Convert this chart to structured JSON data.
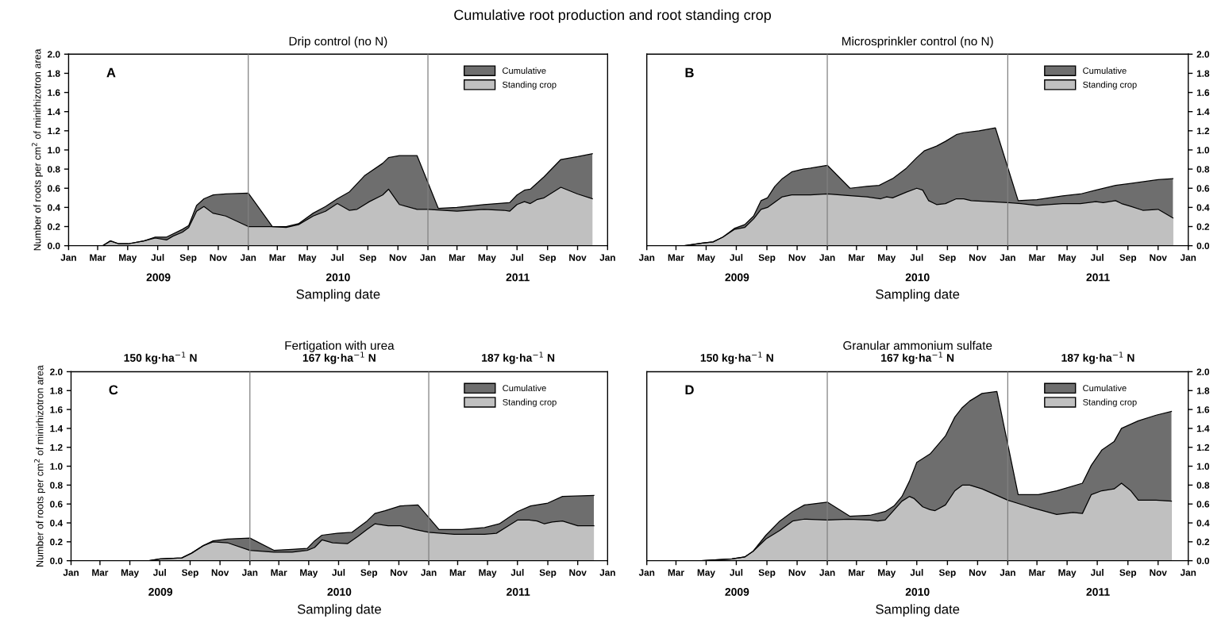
{
  "chart_data": [
    {
      "type": "area",
      "title": "Cumulative root production and root standing crop",
      "subtitle": "Drip control (no N)",
      "xlabel": "Sampling date",
      "ylabel": "Number of roots per cm$^{2}$ of minirhizotron area",
      "annotations": [
        "A",
        "2009",
        "2010",
        "2011"
      ],
      "xlim": [
        "2009-01-01",
        "2012-01-01"
      ],
      "xticks": [
        {
          "value": "2009-01-01",
          "label": "Jan"
        },
        {
          "value": "2009-03-01",
          "label": "Mar"
        },
        {
          "value": "2009-05-01",
          "label": "May"
        },
        {
          "value": "2009-07-01",
          "label": "Jul"
        },
        {
          "value": "2009-09-01",
          "label": "Sep"
        },
        {
          "value": "2009-11-01",
          "label": "Nov"
        },
        {
          "value": "2010-01-01",
          "label": "Jan"
        },
        {
          "value": "2010-03-01",
          "label": "Mar"
        },
        {
          "value": "2010-05-01",
          "label": "May"
        },
        {
          "value": "2010-07-01",
          "label": "Jul"
        },
        {
          "value": "2010-09-01",
          "label": "Sep"
        },
        {
          "value": "2010-11-01",
          "label": "Nov"
        },
        {
          "value": "2011-01-01",
          "label": "Jan"
        },
        {
          "value": "2011-03-01",
          "label": "Mar"
        },
        {
          "value": "2011-05-01",
          "label": "May"
        },
        {
          "value": "2011-07-01",
          "label": "Jul"
        },
        {
          "value": "2011-09-01",
          "label": "Sep"
        },
        {
          "value": "2011-11-01",
          "label": "Nov"
        },
        {
          "value": "2012-01-01",
          "label": "Jan"
        }
      ],
      "ylim": [
        0,
        2
      ],
      "yticks": [
        {
          "value": 0,
          "label": "0.0"
        },
        0.2,
        0.4,
        0.6,
        0.8,
        {
          "value": 1,
          "label": "1.0"
        },
        1.2,
        1.4,
        1.6,
        1.8,
        {
          "value": 2,
          "label": "2.0"
        }
      ],
      "ref_lines": [
        {
          "axis": "x",
          "value": "2010-01-01",
          "color": "#808080"
        },
        {
          "axis": "x",
          "value": "2011-01-01",
          "color": "#808080"
        }
      ],
      "legend": "top right",
      "series": [
        {
          "name": "Cumulative",
          "color": "#6e6e6e",
          "x": [
            "2009-03-11",
            "2009-03-27",
            "2009-04-13",
            "2009-05-02",
            "2009-06-03",
            "2009-06-26",
            "2009-07-19",
            "2009-08-20",
            "2009-09-02",
            "2009-09-18",
            "2009-10-03",
            "2009-10-22",
            "2009-11-16",
            "2010-01-01",
            "2010-02-19",
            "2010-03-19",
            "2010-04-13",
            "2010-05-13",
            "2010-06-07",
            "2010-07-01",
            "2010-07-25",
            "2010-08-25",
            "2010-10-01",
            "2010-10-13",
            "2010-11-04",
            "2010-12-10",
            "2011-01-22",
            "2011-03-01",
            "2011-04-25",
            "2011-06-16",
            "2011-07-01",
            "2011-07-16",
            "2011-07-28",
            "2011-08-25",
            "2011-09-28",
            "2011-11-01",
            "2011-12-01"
          ],
          "values": [
            0,
            0.05,
            0.02,
            0.02,
            0.05,
            0.09,
            0.09,
            0.17,
            0.21,
            0.42,
            0.49,
            0.53,
            0.54,
            0.55,
            0.2,
            0.2,
            0.23,
            0.34,
            0.41,
            0.49,
            0.56,
            0.73,
            0.86,
            0.92,
            0.94,
            0.94,
            0.39,
            0.4,
            0.43,
            0.45,
            0.53,
            0.58,
            0.59,
            0.72,
            0.9,
            0.93,
            0.96
          ]
        },
        {
          "name": "Standing crop",
          "color": "#c0c0c0",
          "x": [
            "2009-03-11",
            "2009-03-27",
            "2009-04-13",
            "2009-05-02",
            "2009-06-03",
            "2009-06-26",
            "2009-07-19",
            "2009-08-01",
            "2009-08-20",
            "2009-09-02",
            "2009-09-18",
            "2009-10-03",
            "2009-10-21",
            "2009-11-16",
            "2010-01-01",
            "2010-02-19",
            "2010-03-19",
            "2010-04-13",
            "2010-05-13",
            "2010-06-07",
            "2010-07-01",
            "2010-07-25",
            "2010-08-10",
            "2010-09-04",
            "2010-10-01",
            "2010-10-13",
            "2010-11-04",
            "2010-12-10",
            "2011-01-01",
            "2011-03-01",
            "2011-04-25",
            "2011-06-04",
            "2011-06-16",
            "2011-07-01",
            "2011-07-16",
            "2011-07-28",
            "2011-08-10",
            "2011-08-25",
            "2011-09-28",
            "2011-11-01",
            "2011-12-01"
          ],
          "values": [
            0,
            0.05,
            0.02,
            0.02,
            0.05,
            0.08,
            0.06,
            0.1,
            0.14,
            0.19,
            0.36,
            0.41,
            0.34,
            0.31,
            0.2,
            0.2,
            0.19,
            0.22,
            0.31,
            0.36,
            0.44,
            0.37,
            0.38,
            0.46,
            0.53,
            0.59,
            0.43,
            0.38,
            0.38,
            0.36,
            0.38,
            0.37,
            0.36,
            0.43,
            0.46,
            0.44,
            0.48,
            0.5,
            0.61,
            0.54,
            0.49
          ]
        }
      ]
    },
    {
      "type": "area",
      "subtitle": "Microsprinkler control (no N)",
      "xlabel": "Sampling date",
      "annotations": [
        "B",
        "2009",
        "2010",
        "2011"
      ],
      "xlim": [
        "2009-01-01",
        "2012-01-01"
      ],
      "xticks": [
        {
          "value": "2009-01-01",
          "label": "Jan"
        },
        {
          "value": "2009-03-01",
          "label": "Mar"
        },
        {
          "value": "2009-05-01",
          "label": "May"
        },
        {
          "value": "2009-07-01",
          "label": "Jul"
        },
        {
          "value": "2009-09-01",
          "label": "Sep"
        },
        {
          "value": "2009-11-01",
          "label": "Nov"
        },
        {
          "value": "2010-01-01",
          "label": "Jan"
        },
        {
          "value": "2010-03-01",
          "label": "Mar"
        },
        {
          "value": "2010-05-01",
          "label": "May"
        },
        {
          "value": "2010-07-01",
          "label": "Jul"
        },
        {
          "value": "2010-09-01",
          "label": "Sep"
        },
        {
          "value": "2010-11-01",
          "label": "Nov"
        },
        {
          "value": "2011-01-01",
          "label": "Jan"
        },
        {
          "value": "2011-03-01",
          "label": "Mar"
        },
        {
          "value": "2011-05-01",
          "label": "May"
        },
        {
          "value": "2011-07-01",
          "label": "Jul"
        },
        {
          "value": "2011-09-01",
          "label": "Sep"
        },
        {
          "value": "2011-11-01",
          "label": "Nov"
        },
        {
          "value": "2012-01-01",
          "label": "Jan"
        }
      ],
      "y2lim": [
        0,
        2
      ],
      "y2ticks": [
        {
          "value": 0,
          "label": "0.0"
        },
        0.2,
        0.4,
        0.6,
        0.8,
        {
          "value": 1,
          "label": "1.0"
        },
        1.2,
        1.4,
        1.6,
        1.8,
        {
          "value": 2,
          "label": "2.0"
        }
      ],
      "ref_lines": [
        {
          "axis": "x",
          "value": "2010-01-01",
          "color": "#808080"
        },
        {
          "axis": "x",
          "value": "2011-01-01",
          "color": "#808080"
        }
      ],
      "legend": "top right",
      "series": [
        {
          "name": "Cumulative",
          "color": "#6e6e6e",
          "axis": "y2",
          "x": [
            "2009-03-18",
            "2009-04-26",
            "2009-05-15",
            "2009-06-04",
            "2009-06-27",
            "2009-07-18",
            "2009-08-05",
            "2009-08-20",
            "2009-09-02",
            "2009-09-17",
            "2009-10-02",
            "2009-10-21",
            "2009-11-13",
            "2009-11-28",
            "2010-01-01",
            "2010-02-16",
            "2010-03-22",
            "2010-04-16",
            "2010-05-01",
            "2010-05-13",
            "2010-06-10",
            "2010-07-01",
            "2010-07-16",
            "2010-08-10",
            "2010-08-28",
            "2010-09-19",
            "2010-10-04",
            "2010-11-04",
            "2010-12-07",
            "2011-01-22",
            "2011-03-01",
            "2011-04-22",
            "2011-05-28",
            "2011-06-28",
            "2011-08-07",
            "2011-09-07",
            "2011-11-01",
            "2011-12-01"
          ],
          "values": [
            0,
            0.03,
            0.04,
            0.09,
            0.18,
            0.22,
            0.31,
            0.47,
            0.5,
            0.62,
            0.7,
            0.77,
            0.8,
            0.81,
            0.84,
            0.6,
            0.62,
            0.63,
            0.67,
            0.7,
            0.81,
            0.92,
            0.99,
            1.04,
            1.09,
            1.16,
            1.18,
            1.2,
            1.23,
            0.47,
            0.48,
            0.52,
            0.54,
            0.58,
            0.63,
            0.65,
            0.69,
            0.7
          ]
        },
        {
          "name": "Standing crop",
          "color": "#c0c0c0",
          "axis": "y2",
          "x": [
            "2009-03-18",
            "2009-04-26",
            "2009-05-15",
            "2009-06-04",
            "2009-06-27",
            "2009-07-18",
            "2009-08-05",
            "2009-08-20",
            "2009-09-02",
            "2009-10-02",
            "2009-10-21",
            "2009-11-28",
            "2010-01-01",
            "2010-02-22",
            "2010-03-22",
            "2010-04-19",
            "2010-05-01",
            "2010-05-13",
            "2010-06-10",
            "2010-07-01",
            "2010-07-13",
            "2010-07-25",
            "2010-08-10",
            "2010-08-28",
            "2010-09-19",
            "2010-10-04",
            "2010-10-19",
            "2010-11-25",
            "2011-01-01",
            "2011-01-28",
            "2011-03-01",
            "2011-04-22",
            "2011-05-28",
            "2011-06-28",
            "2011-07-13",
            "2011-08-07",
            "2011-08-19",
            "2011-09-07",
            "2011-10-01",
            "2011-11-01",
            "2011-12-01"
          ],
          "values": [
            0,
            0.03,
            0.04,
            0.09,
            0.17,
            0.19,
            0.28,
            0.38,
            0.4,
            0.51,
            0.53,
            0.53,
            0.54,
            0.52,
            0.51,
            0.49,
            0.51,
            0.5,
            0.56,
            0.6,
            0.58,
            0.47,
            0.43,
            0.44,
            0.49,
            0.49,
            0.47,
            0.46,
            0.45,
            0.44,
            0.42,
            0.44,
            0.44,
            0.46,
            0.45,
            0.47,
            0.44,
            0.41,
            0.37,
            0.38,
            0.29
          ]
        }
      ]
    },
    {
      "type": "area",
      "subtitle": "Fertigation with urea",
      "xlabel": "Sampling date",
      "ylabel": "Number of roots per cm$^{2}$ of minirhizotron area",
      "annotations": [
        "C",
        "2009",
        "2010",
        "2011",
        "150 kg·ha$^{−1}$ N",
        "167 kg·ha$^{−1}$ N",
        "187 kg·ha$^{−1}$ N"
      ],
      "xlim": [
        "2009-01-01",
        "2012-01-01"
      ],
      "xticks": [
        {
          "value": "2009-01-01",
          "label": "Jan"
        },
        {
          "value": "2009-03-01",
          "label": "Mar"
        },
        {
          "value": "2009-05-01",
          "label": "May"
        },
        {
          "value": "2009-07-01",
          "label": "Jul"
        },
        {
          "value": "2009-09-01",
          "label": "Sep"
        },
        {
          "value": "2009-11-01",
          "label": "Nov"
        },
        {
          "value": "2010-01-01",
          "label": "Jan"
        },
        {
          "value": "2010-03-01",
          "label": "Mar"
        },
        {
          "value": "2010-05-01",
          "label": "May"
        },
        {
          "value": "2010-07-01",
          "label": "Jul"
        },
        {
          "value": "2010-09-01",
          "label": "Sep"
        },
        {
          "value": "2010-11-01",
          "label": "Nov"
        },
        {
          "value": "2011-01-01",
          "label": "Jan"
        },
        {
          "value": "2011-03-01",
          "label": "Mar"
        },
        {
          "value": "2011-05-01",
          "label": "May"
        },
        {
          "value": "2011-07-01",
          "label": "Jul"
        },
        {
          "value": "2011-09-01",
          "label": "Sep"
        },
        {
          "value": "2011-11-01",
          "label": "Nov"
        },
        {
          "value": "2012-01-01",
          "label": "Jan"
        }
      ],
      "ylim": [
        0,
        2
      ],
      "yticks": [
        {
          "value": 0,
          "label": "0.0"
        },
        0.2,
        0.4,
        0.6,
        0.8,
        {
          "value": 1,
          "label": "1.0"
        },
        1.2,
        1.4,
        1.6,
        1.8,
        {
          "value": 2,
          "label": "2.0"
        }
      ],
      "ref_lines": [
        {
          "axis": "x",
          "value": "2010-01-01",
          "color": "#808080"
        },
        {
          "axis": "x",
          "value": "2011-01-01",
          "color": "#808080"
        }
      ],
      "legend": "top right",
      "series": [
        {
          "name": "Cumulative",
          "color": "#6e6e6e",
          "x": [
            "2009-06-09",
            "2009-07-02",
            "2009-08-15",
            "2009-09-04",
            "2009-09-28",
            "2009-10-18",
            "2009-11-16",
            "2010-01-01",
            "2010-02-19",
            "2010-03-28",
            "2010-04-28",
            "2010-05-13",
            "2010-05-28",
            "2010-06-28",
            "2010-07-28",
            "2010-08-28",
            "2010-09-13",
            "2010-10-04",
            "2010-11-04",
            "2010-12-10",
            "2011-01-22",
            "2011-03-10",
            "2011-04-25",
            "2011-05-25",
            "2011-07-01",
            "2011-07-28",
            "2011-09-01",
            "2011-10-01",
            "2011-12-04"
          ],
          "values": [
            0,
            0.02,
            0.03,
            0.08,
            0.16,
            0.21,
            0.23,
            0.24,
            0.11,
            0.12,
            0.13,
            0.21,
            0.27,
            0.29,
            0.3,
            0.42,
            0.5,
            0.53,
            0.58,
            0.59,
            0.33,
            0.33,
            0.35,
            0.39,
            0.52,
            0.58,
            0.61,
            0.68,
            0.69
          ]
        },
        {
          "name": "Standing crop",
          "color": "#c0c0c0",
          "x": [
            "2009-06-09",
            "2009-07-02",
            "2009-08-15",
            "2009-09-04",
            "2009-09-28",
            "2009-10-18",
            "2009-11-16",
            "2010-01-01",
            "2010-02-19",
            "2010-03-28",
            "2010-04-28",
            "2010-05-13",
            "2010-05-28",
            "2010-06-19",
            "2010-07-19",
            "2010-08-10",
            "2010-08-28",
            "2010-09-13",
            "2010-10-10",
            "2010-11-04",
            "2010-12-04",
            "2011-01-01",
            "2011-02-22",
            "2011-04-25",
            "2011-05-19",
            "2011-06-13",
            "2011-07-01",
            "2011-07-25",
            "2011-08-10",
            "2011-08-25",
            "2011-09-10",
            "2011-10-01",
            "2011-11-01",
            "2011-12-04"
          ],
          "values": [
            0,
            0.02,
            0.03,
            0.08,
            0.16,
            0.2,
            0.19,
            0.11,
            0.09,
            0.09,
            0.11,
            0.14,
            0.22,
            0.19,
            0.18,
            0.26,
            0.33,
            0.39,
            0.37,
            0.37,
            0.33,
            0.3,
            0.28,
            0.28,
            0.29,
            0.37,
            0.43,
            0.43,
            0.42,
            0.39,
            0.41,
            0.42,
            0.37,
            0.37
          ]
        }
      ]
    },
    {
      "type": "area",
      "subtitle": "Granular ammonium sulfate",
      "xlabel": "Sampling date",
      "annotations": [
        "D",
        "2009",
        "2010",
        "2011",
        "150 kg·ha$^{−1}$ N",
        "167 kg·ha$^{−1}$ N",
        "187 kg·ha$^{−1}$ N"
      ],
      "xlim": [
        "2009-01-01",
        "2012-01-01"
      ],
      "xticks": [
        {
          "value": "2009-01-01",
          "label": "Jan"
        },
        {
          "value": "2009-03-01",
          "label": "Mar"
        },
        {
          "value": "2009-05-01",
          "label": "May"
        },
        {
          "value": "2009-07-01",
          "label": "Jul"
        },
        {
          "value": "2009-09-01",
          "label": "Sep"
        },
        {
          "value": "2009-11-01",
          "label": "Nov"
        },
        {
          "value": "2010-01-01",
          "label": "Jan"
        },
        {
          "value": "2010-03-01",
          "label": "Mar"
        },
        {
          "value": "2010-05-01",
          "label": "May"
        },
        {
          "value": "2010-07-01",
          "label": "Jul"
        },
        {
          "value": "2010-09-01",
          "label": "Sep"
        },
        {
          "value": "2010-11-01",
          "label": "Nov"
        },
        {
          "value": "2011-01-01",
          "label": "Jan"
        },
        {
          "value": "2011-03-01",
          "label": "Mar"
        },
        {
          "value": "2011-05-01",
          "label": "May"
        },
        {
          "value": "2011-07-01",
          "label": "Jul"
        },
        {
          "value": "2011-09-01",
          "label": "Sep"
        },
        {
          "value": "2011-11-01",
          "label": "Nov"
        },
        {
          "value": "2012-01-01",
          "label": "Jan"
        }
      ],
      "y2lim": [
        0,
        2
      ],
      "y2ticks": [
        {
          "value": 0,
          "label": "0.0"
        },
        0.2,
        0.4,
        0.6,
        0.8,
        {
          "value": 1,
          "label": "1.0"
        },
        1.2,
        1.4,
        1.6,
        1.8,
        {
          "value": 2,
          "label": "2.0"
        }
      ],
      "ref_lines": [
        {
          "axis": "x",
          "value": "2010-01-01",
          "color": "#808080"
        },
        {
          "axis": "x",
          "value": "2011-01-01",
          "color": "#808080"
        }
      ],
      "legend": "top right",
      "series": [
        {
          "name": "Cumulative",
          "color": "#6e6e6e",
          "axis": "y2",
          "x": [
            "2009-04-21",
            "2009-06-22",
            "2009-07-18",
            "2009-08-04",
            "2009-08-30",
            "2009-09-27",
            "2009-10-23",
            "2009-11-16",
            "2010-01-01",
            "2010-02-16",
            "2010-03-28",
            "2010-04-28",
            "2010-05-16",
            "2010-06-01",
            "2010-06-16",
            "2010-07-01",
            "2010-07-28",
            "2010-08-28",
            "2010-09-16",
            "2010-10-01",
            "2010-10-16",
            "2010-11-10",
            "2010-12-10",
            "2011-01-22",
            "2011-03-04",
            "2011-04-10",
            "2011-06-01",
            "2011-06-19",
            "2011-07-10",
            "2011-08-04",
            "2011-08-19",
            "2011-09-22",
            "2011-10-28",
            "2011-11-28"
          ],
          "values": [
            0,
            0.02,
            0.04,
            0.1,
            0.27,
            0.42,
            0.52,
            0.59,
            0.62,
            0.47,
            0.48,
            0.52,
            0.58,
            0.68,
            0.84,
            1.04,
            1.13,
            1.32,
            1.52,
            1.62,
            1.69,
            1.77,
            1.79,
            0.7,
            0.7,
            0.74,
            0.82,
            1.01,
            1.17,
            1.26,
            1.4,
            1.48,
            1.54,
            1.58
          ]
        },
        {
          "name": "Standing crop",
          "color": "#c0c0c0",
          "axis": "y2",
          "x": [
            "2009-04-21",
            "2009-06-22",
            "2009-07-18",
            "2009-08-04",
            "2009-08-30",
            "2009-09-27",
            "2009-10-23",
            "2009-11-16",
            "2010-01-01",
            "2010-02-13",
            "2010-03-28",
            "2010-04-13",
            "2010-04-28",
            "2010-06-01",
            "2010-06-16",
            "2010-06-25",
            "2010-07-13",
            "2010-07-28",
            "2010-08-07",
            "2010-08-28",
            "2010-09-16",
            "2010-10-01",
            "2010-10-16",
            "2010-11-10",
            "2011-01-01",
            "2011-02-13",
            "2011-04-10",
            "2011-05-13",
            "2011-06-01",
            "2011-06-19",
            "2011-07-10",
            "2011-08-04",
            "2011-08-19",
            "2011-09-07",
            "2011-09-22",
            "2011-10-28",
            "2011-11-28"
          ],
          "values": [
            0,
            0.02,
            0.04,
            0.1,
            0.23,
            0.32,
            0.42,
            0.44,
            0.43,
            0.44,
            0.43,
            0.42,
            0.43,
            0.63,
            0.68,
            0.66,
            0.57,
            0.54,
            0.53,
            0.59,
            0.74,
            0.8,
            0.8,
            0.76,
            0.64,
            0.57,
            0.49,
            0.51,
            0.5,
            0.7,
            0.74,
            0.76,
            0.82,
            0.74,
            0.64,
            0.64,
            0.63
          ]
        }
      ]
    }
  ]
}
